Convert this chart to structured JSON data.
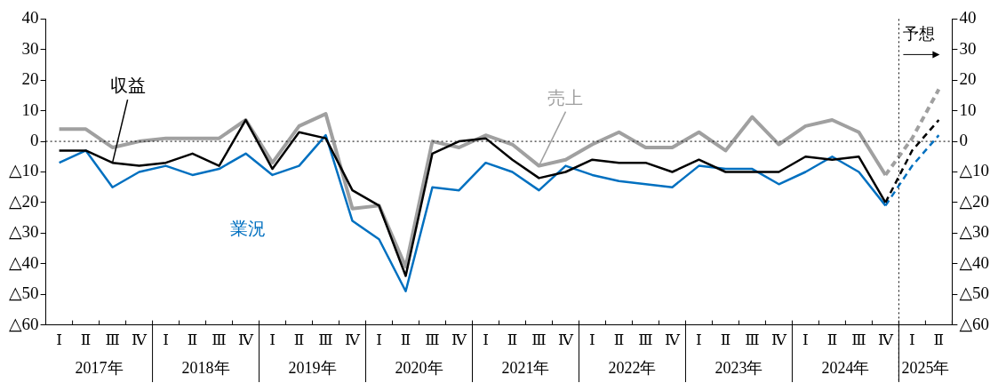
{
  "chart_data": {
    "type": "line",
    "categories": [
      "Ⅰ",
      "Ⅱ",
      "Ⅲ",
      "Ⅳ",
      "Ⅰ",
      "Ⅱ",
      "Ⅲ",
      "Ⅳ",
      "Ⅰ",
      "Ⅱ",
      "Ⅲ",
      "Ⅳ",
      "Ⅰ",
      "Ⅱ",
      "Ⅲ",
      "Ⅳ",
      "Ⅰ",
      "Ⅱ",
      "Ⅲ",
      "Ⅳ",
      "Ⅰ",
      "Ⅱ",
      "Ⅲ",
      "Ⅳ",
      "Ⅰ",
      "Ⅱ",
      "Ⅲ",
      "Ⅳ",
      "Ⅰ",
      "Ⅱ",
      "Ⅲ",
      "Ⅳ",
      "Ⅰ",
      "Ⅱ"
    ],
    "series": [
      {
        "name": "収益",
        "color": "#000000",
        "line_style": "solid",
        "values": [
          -3,
          -3,
          -7,
          -8,
          -7,
          -4,
          -8,
          7,
          -9,
          3,
          1,
          -16,
          -21,
          -44,
          -4,
          0,
          1,
          -6,
          -12,
          -10,
          -6,
          -7,
          -7,
          -10,
          -6,
          -10,
          -10,
          -10,
          -5,
          -6,
          -5,
          -20,
          null,
          null
        ]
      },
      {
        "name": "業況",
        "color": "#0070c0",
        "line_style": "solid",
        "values": [
          -7,
          -3,
          -15,
          -10,
          -8,
          -11,
          -9,
          -4,
          -11,
          -8,
          2,
          -26,
          -32,
          -49,
          -15,
          -16,
          -7,
          -10,
          -16,
          -8,
          -11,
          -13,
          -14,
          -15,
          -8,
          -9,
          -9,
          -14,
          -10,
          -5,
          -10,
          -21,
          null,
          null
        ]
      },
      {
        "name": "売上",
        "color": "#a0a0a0",
        "line_style": "solid",
        "values": [
          4,
          4,
          -2,
          0,
          1,
          1,
          1,
          7,
          -7,
          5,
          9,
          -22,
          -21,
          -41,
          0,
          -2,
          2,
          -1,
          -8,
          -6,
          -1,
          3,
          -2,
          -2,
          3,
          -3,
          8,
          -1,
          5,
          7,
          3,
          -11,
          null,
          null
        ]
      },
      {
        "color": "#000000",
        "line_style": "dashed",
        "values": [
          null,
          null,
          null,
          null,
          null,
          null,
          null,
          null,
          null,
          null,
          null,
          null,
          null,
          null,
          null,
          null,
          null,
          null,
          null,
          null,
          null,
          null,
          null,
          null,
          null,
          null,
          null,
          null,
          null,
          null,
          null,
          -20,
          -3,
          7
        ]
      },
      {
        "color": "#0070c0",
        "line_style": "dashed",
        "values": [
          null,
          null,
          null,
          null,
          null,
          null,
          null,
          null,
          null,
          null,
          null,
          null,
          null,
          null,
          null,
          null,
          null,
          null,
          null,
          null,
          null,
          null,
          null,
          null,
          null,
          null,
          null,
          null,
          null,
          null,
          null,
          -21,
          -8,
          2
        ]
      },
      {
        "color": "#a0a0a0",
        "line_style": "dashed",
        "values": [
          null,
          null,
          null,
          null,
          null,
          null,
          null,
          null,
          null,
          null,
          null,
          null,
          null,
          null,
          null,
          null,
          null,
          null,
          null,
          null,
          null,
          null,
          null,
          null,
          null,
          null,
          null,
          null,
          null,
          null,
          null,
          -11,
          1,
          17
        ]
      }
    ],
    "ylim": [
      -60,
      40
    ],
    "yticks": [
      {
        "value": -60,
        "label": "△60"
      },
      {
        "value": -50,
        "label": "△50"
      },
      {
        "value": -40,
        "label": "△40"
      },
      {
        "value": -30,
        "label": "△30"
      },
      {
        "value": -20,
        "label": "△20"
      },
      {
        "value": -10,
        "label": "△10"
      },
      0,
      10,
      20,
      30,
      40
    ],
    "y2lim": [
      -60,
      40
    ],
    "y2ticks": [
      {
        "value": -60,
        "label": "△60"
      },
      {
        "value": -50,
        "label": "△50"
      },
      {
        "value": -40,
        "label": "△40"
      },
      {
        "value": -30,
        "label": "△30"
      },
      {
        "value": -20,
        "label": "△20"
      },
      {
        "value": -10,
        "label": "△10"
      },
      0,
      10,
      20,
      30,
      40
    ],
    "ref_lines": [
      {
        "axis": "y",
        "value": 0,
        "line_style": "dotted",
        "color": "#000000"
      }
    ],
    "annotations": [
      "2017年",
      "2018年",
      "2019年",
      "2020年",
      "2021年",
      "2022年",
      "2023年",
      "2024年",
      "2025年",
      "予想"
    ],
    "grid": false,
    "legend": false,
    "marker": "none"
  }
}
